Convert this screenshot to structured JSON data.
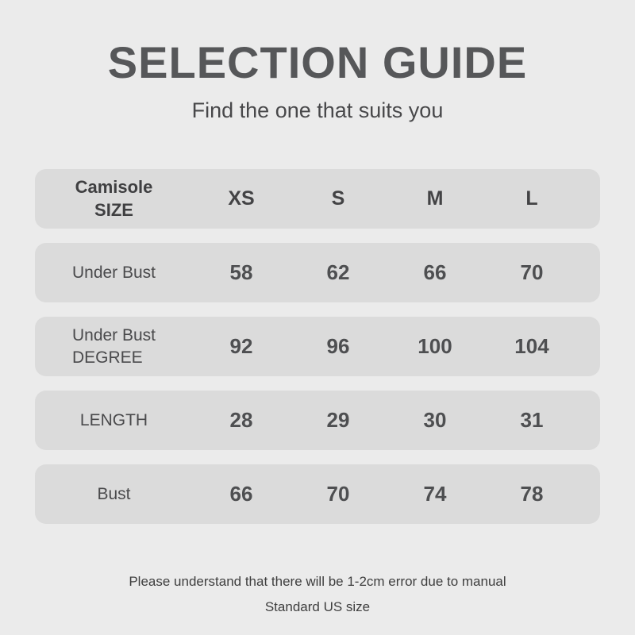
{
  "page": {
    "title": "SELECTION GUIDE",
    "subtitle": "Find the one that suits you",
    "note_line1": "Please understand that there will be 1-2cm error due to manual",
    "note_line2": "Standard US size"
  },
  "colors": {
    "page_background": "#ebebeb",
    "row_background": "#dbdbdb",
    "text_dark_gray": "#4e4f51",
    "title_gray": "#565759"
  },
  "size_table": {
    "header": {
      "label_line1": "Camisole",
      "label_line2": "SIZE",
      "columns": [
        "XS",
        "S",
        "M",
        "L"
      ]
    },
    "rows": [
      {
        "label_line1": "Under Bust",
        "label_line2": "",
        "values": [
          "58",
          "62",
          "66",
          "70"
        ]
      },
      {
        "label_line1": "Under Bust",
        "label_line2": "DEGREE",
        "values": [
          "92",
          "96",
          "100",
          "104"
        ]
      },
      {
        "label_line1": "LENGTH",
        "label_line2": "",
        "values": [
          "28",
          "29",
          "30",
          "31"
        ]
      },
      {
        "label_line1": "Bust",
        "label_line2": "",
        "values": [
          "66",
          "70",
          "74",
          "78"
        ]
      }
    ]
  }
}
